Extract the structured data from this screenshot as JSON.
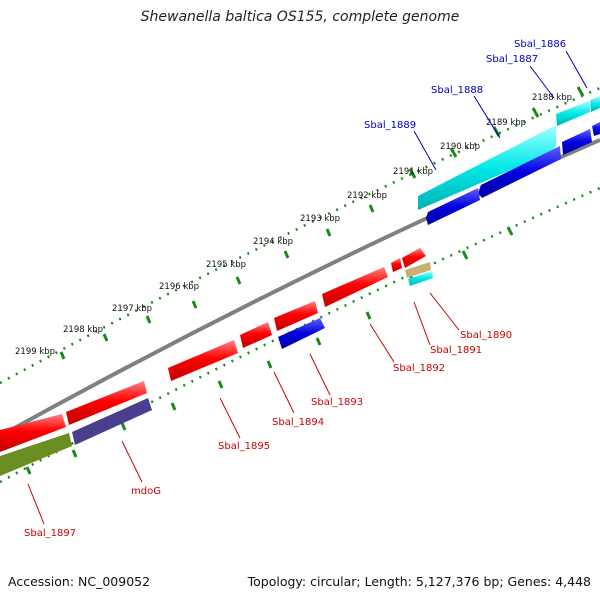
{
  "title": "Shewanella baltica OS155, complete genome",
  "footer": {
    "accession": "Accession: NC_009052",
    "summary": "Topology: circular; Length: 5,127,376 bp; Genes: 4,448"
  },
  "colors": {
    "forward_gene": "#ff0000",
    "reverse_gene": "#0000e0",
    "cyan_gene": "#00e8e8",
    "olive_gene": "#6b8e23",
    "purple_gene": "#4a3f8f",
    "tan_gene": "#c8b070",
    "backbone": "#808080",
    "tick": "#1a8a1a",
    "label_forward": "#0000c0",
    "label_reverse": "#cc0000"
  },
  "scale_labels": [
    "2188 kbp",
    "2189 kbp",
    "2190 kbp",
    "2191 kbp",
    "2192 kbp",
    "2193 kbp",
    "2194 kbp",
    "2195 kbp",
    "2196 kbp",
    "2197 kbp",
    "2198 kbp",
    "2199 kbp"
  ],
  "gene_labels": [
    "Sbal_1886",
    "Sbal_1887",
    "Sbal_1888",
    "Sbal_1889",
    "Sbal_1890",
    "Sbal_1891",
    "Sbal_1892",
    "Sbal_1893",
    "Sbal_1894",
    "Sbal_1895",
    "mdoG",
    "Sbal_1897"
  ]
}
